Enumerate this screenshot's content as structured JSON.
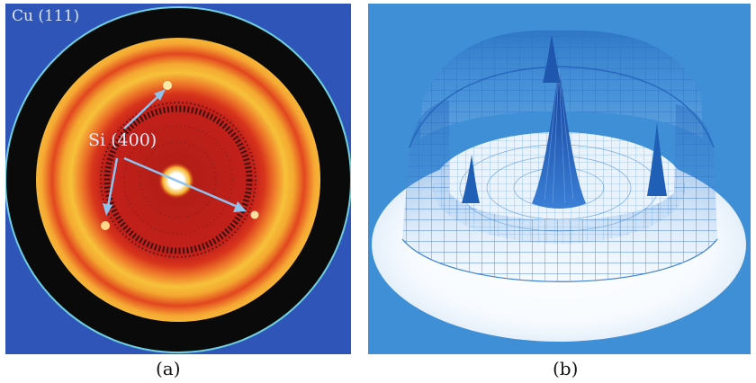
{
  "panel_a": {
    "label_cu": "Cu (111)",
    "label_si": "Si (400)",
    "caption": "(a)",
    "colors": {
      "background": "#2f55b8",
      "outer_ring": "#0a0a0a",
      "hot": "#d8231a",
      "yellow": "#f6c23a",
      "arrow": "#8fc3ee"
    }
  },
  "panel_b": {
    "caption": "(b)",
    "colors": {
      "background": "#3f8fd6",
      "mesh": "#2b6fc2",
      "peak": "#1a4fa8"
    }
  }
}
